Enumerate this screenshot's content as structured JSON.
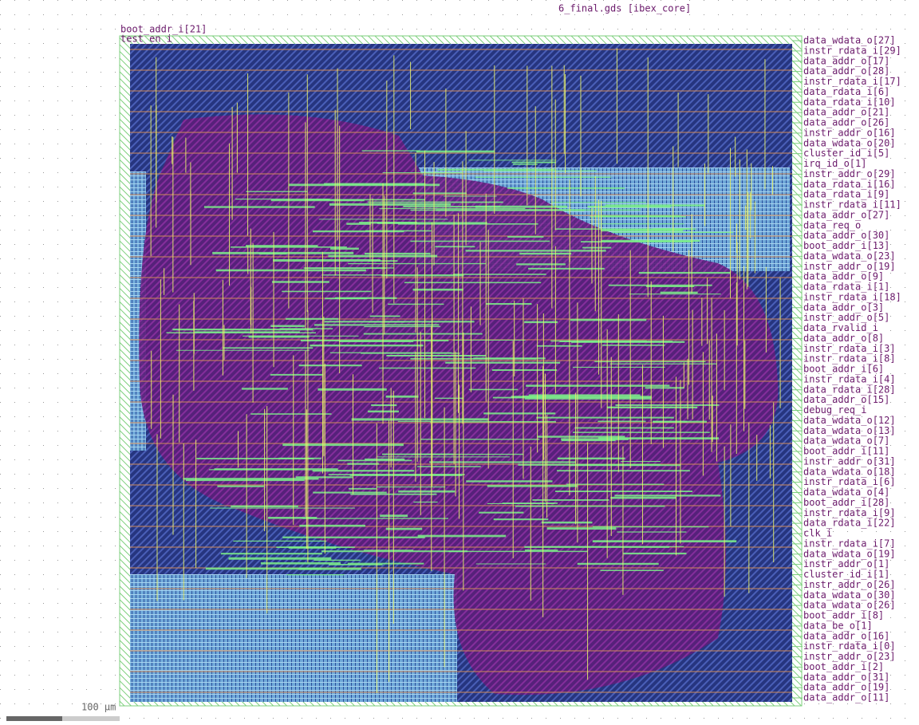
{
  "title": "6_final.gds [ibex_core]",
  "left_pins": [
    "boot_addr_i[21]",
    "test_en_i"
  ],
  "right_pins": [
    "data_wdata_o[27]",
    "instr_rdata_i[29]",
    "data_addr_o[17]",
    "data_addr_o[28]",
    "instr_rdata_i[17]",
    "data_rdata_i[6]",
    "data_rdata_i[10]",
    "data_addr_o[21]",
    "data_addr_o[26]",
    "instr_addr_o[16]",
    "data_wdata_o[20]",
    "cluster_id_i[5]",
    "irq_id_o[1]",
    "instr_addr_o[29]",
    "data_rdata_i[16]",
    "data_rdata_i[9]",
    "instr_rdata_i[11]",
    "data_addr_o[27]",
    "data_req_o",
    "data_addr_o[30]",
    "boot_addr_i[13]",
    "data_wdata_o[23]",
    "instr_addr_o[19]",
    "data_addr_o[9]",
    "data_rdata_i[1]",
    "instr_rdata_i[18]",
    "data_addr_o[3]",
    "instr_addr_o[5]",
    "data_rvalid_i",
    "data_addr_o[8]",
    "instr_rdata_i[3]",
    "instr_rdata_i[8]",
    "boot_addr_i[6]",
    "instr_rdata_i[4]",
    "data_rdata_i[28]",
    "data_addr_o[15]",
    "debug_req_i",
    "data_wdata_o[12]",
    "data_wdata_o[13]",
    "data_wdata_o[7]",
    "boot_addr_i[11]",
    "instr_addr_o[31]",
    "data_wdata_o[18]",
    "instr_rdata_i[6]",
    "data_wdata_o[4]",
    "boot_addr_i[28]",
    "instr_rdata_i[9]",
    "data_rdata_i[22]",
    "clk_i",
    "instr_rdata_i[7]",
    "data_wdata_o[19]",
    "instr_addr_o[1]",
    "cluster_id_i[1]",
    "instr_addr_o[26]",
    "data_wdata_o[30]",
    "data_wdata_o[26]",
    "boot_addr_i[8]",
    "data_be_o[1]",
    "data_addr_o[16]",
    "instr_rdata_i[0]",
    "instr_addr_o[23]",
    "boot_addr_i[2]",
    "data_addr_o[31]",
    "data_addr_o[19]",
    "data_addr_o[11]"
  ],
  "scale_bar": "100 μm"
}
